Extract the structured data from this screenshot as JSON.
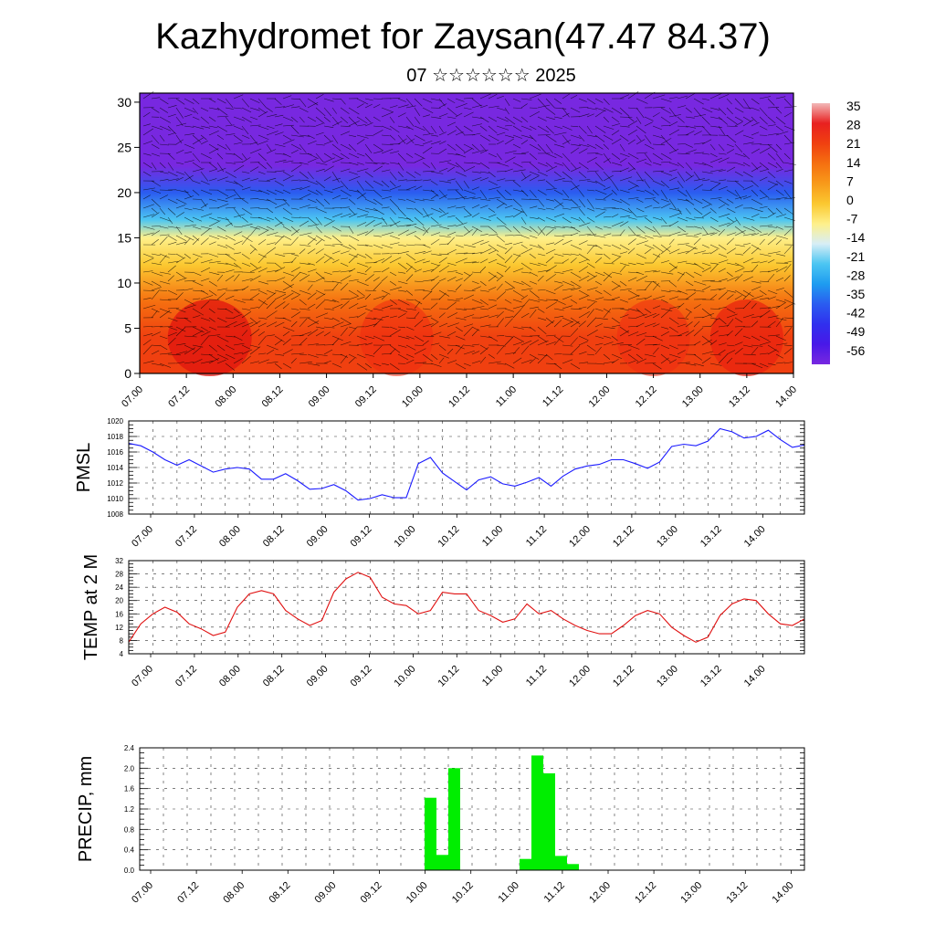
{
  "title": "Kazhydromet for Zaysan(47.47 84.37)",
  "subtitle": "07 ☆☆☆☆☆☆ 2025",
  "colors": {
    "pmsl_line": "#1a1aff",
    "temp_line": "#e01010",
    "precip_bar": "#00ee00",
    "wind_barb": "#000000"
  },
  "chart_data": [
    {
      "type": "heatmap",
      "name_hint": "vertical cross-section with wind barbs",
      "title": "",
      "xlabel": "",
      "ylabel": "",
      "ylim": [
        0,
        31
      ],
      "y_ticks": [
        "0",
        "5",
        "10",
        "15",
        "20",
        "25",
        "30"
      ],
      "x_ticks": [
        "07.00",
        "07.12",
        "08.00",
        "08.12",
        "09.00",
        "09.12",
        "10.00",
        "10.12",
        "11.00",
        "11.12",
        "12.00",
        "12.12",
        "13.00",
        "13.12",
        "14.00"
      ],
      "colorbar_labels": [
        "35",
        "28",
        "21",
        "14",
        "7",
        "0",
        "-7",
        "-14",
        "-21",
        "-28",
        "-35",
        "-42",
        "-49",
        "-56"
      ],
      "colorbar_colors": [
        "#f2b8b8",
        "#e82020",
        "#f04010",
        "#f57010",
        "#f89a1a",
        "#fbc830",
        "#fef08a",
        "#d8eef6",
        "#4cc6f2",
        "#1e9cf0",
        "#2a5cf0",
        "#3030ee",
        "#4818e8",
        "#7828e0"
      ],
      "layers": [
        {
          "z": 31,
          "value": -50
        },
        {
          "z": 27,
          "value": -55
        },
        {
          "z": 23,
          "value": -57
        },
        {
          "z": 20,
          "value": -35
        },
        {
          "z": 17,
          "value": -15
        },
        {
          "z": 15,
          "value": -5
        },
        {
          "z": 12,
          "value": 5
        },
        {
          "z": 8,
          "value": 15
        },
        {
          "z": 4,
          "value": 22
        },
        {
          "z": 0,
          "value": 26
        }
      ]
    },
    {
      "type": "line",
      "ylabel": "PMSL",
      "ylim": [
        1008,
        1020
      ],
      "y_ticks": [
        "1008",
        "1010",
        "1012",
        "1014",
        "1016",
        "1018",
        "1020"
      ],
      "x_ticks": [
        "07.00",
        "07.12",
        "08.00",
        "08.12",
        "09.00",
        "09.12",
        "10.00",
        "10.12",
        "11.00",
        "11.12",
        "12.00",
        "12.12",
        "13.00",
        "13.12",
        "14.00"
      ],
      "x_step_hours": 3,
      "values": [
        1017.1,
        1016.8,
        1016.0,
        1015.0,
        1014.3,
        1015.0,
        1014.2,
        1013.4,
        1013.8,
        1014.0,
        1013.8,
        1012.5,
        1012.5,
        1013.2,
        1012.3,
        1011.2,
        1011.3,
        1011.8,
        1011.0,
        1009.8,
        1010.0,
        1010.5,
        1010.1,
        1010.1,
        1014.5,
        1015.3,
        1013.3,
        1012.2,
        1011.1,
        1012.4,
        1012.8,
        1011.9,
        1011.6,
        1012.1,
        1012.7,
        1011.6,
        1012.9,
        1013.8,
        1014.2,
        1014.4,
        1015.0,
        1015.0,
        1014.5,
        1013.9,
        1014.7,
        1016.7,
        1017.0,
        1016.8,
        1017.4,
        1019.0,
        1018.6,
        1017.8,
        1018.0,
        1018.8,
        1017.6,
        1016.6,
        1016.9
      ]
    },
    {
      "type": "line",
      "ylabel": "TEMP at 2 M",
      "ylim": [
        4,
        32
      ],
      "y_ticks": [
        "4",
        "8",
        "12",
        "16",
        "20",
        "24",
        "28",
        "32"
      ],
      "x_ticks": [
        "07.00",
        "07.12",
        "08.00",
        "08.12",
        "09.00",
        "09.12",
        "10.00",
        "10.12",
        "11.00",
        "11.12",
        "12.00",
        "12.12",
        "13.00",
        "13.12",
        "14.00"
      ],
      "x_step_hours": 3,
      "values": [
        7.5,
        13.0,
        16.0,
        18.0,
        16.5,
        13.0,
        11.5,
        9.5,
        10.5,
        18.0,
        22.0,
        23.0,
        22.0,
        17.0,
        14.5,
        12.5,
        14.0,
        22.5,
        26.5,
        28.5,
        27.0,
        21.0,
        19.0,
        18.5,
        16.0,
        17.0,
        22.5,
        22.0,
        22.0,
        17.0,
        15.5,
        13.5,
        14.5,
        19.0,
        16.0,
        17.0,
        14.5,
        12.5,
        11.0,
        10.0,
        10.0,
        12.5,
        15.5,
        17.0,
        16.0,
        12.0,
        9.5,
        7.5,
        9.0,
        15.5,
        19.0,
        20.5,
        20.0,
        16.0,
        13.0,
        12.5,
        14.5
      ]
    },
    {
      "type": "bar",
      "ylabel": "PRECIP, mm",
      "ylim": [
        0,
        2.4
      ],
      "y_ticks": [
        "0.0",
        "0.4",
        "0.8",
        "1.2",
        "1.6",
        "2.0",
        "2.4"
      ],
      "x_ticks": [
        "07.00",
        "07.12",
        "08.00",
        "08.12",
        "09.00",
        "09.12",
        "10.00",
        "10.12",
        "11.00",
        "11.12",
        "12.00",
        "12.12",
        "13.00",
        "13.12",
        "14.00"
      ],
      "x_step_hours": 3,
      "bars": [
        {
          "period": 24,
          "value": 1.42
        },
        {
          "period": 25,
          "value": 0.3
        },
        {
          "period": 26,
          "value": 2.0
        },
        {
          "period": 32,
          "value": 0.22
        },
        {
          "period": 33,
          "value": 2.25
        },
        {
          "period": 34,
          "value": 1.9
        },
        {
          "period": 35,
          "value": 0.28
        },
        {
          "period": 36,
          "value": 0.12
        }
      ]
    }
  ]
}
